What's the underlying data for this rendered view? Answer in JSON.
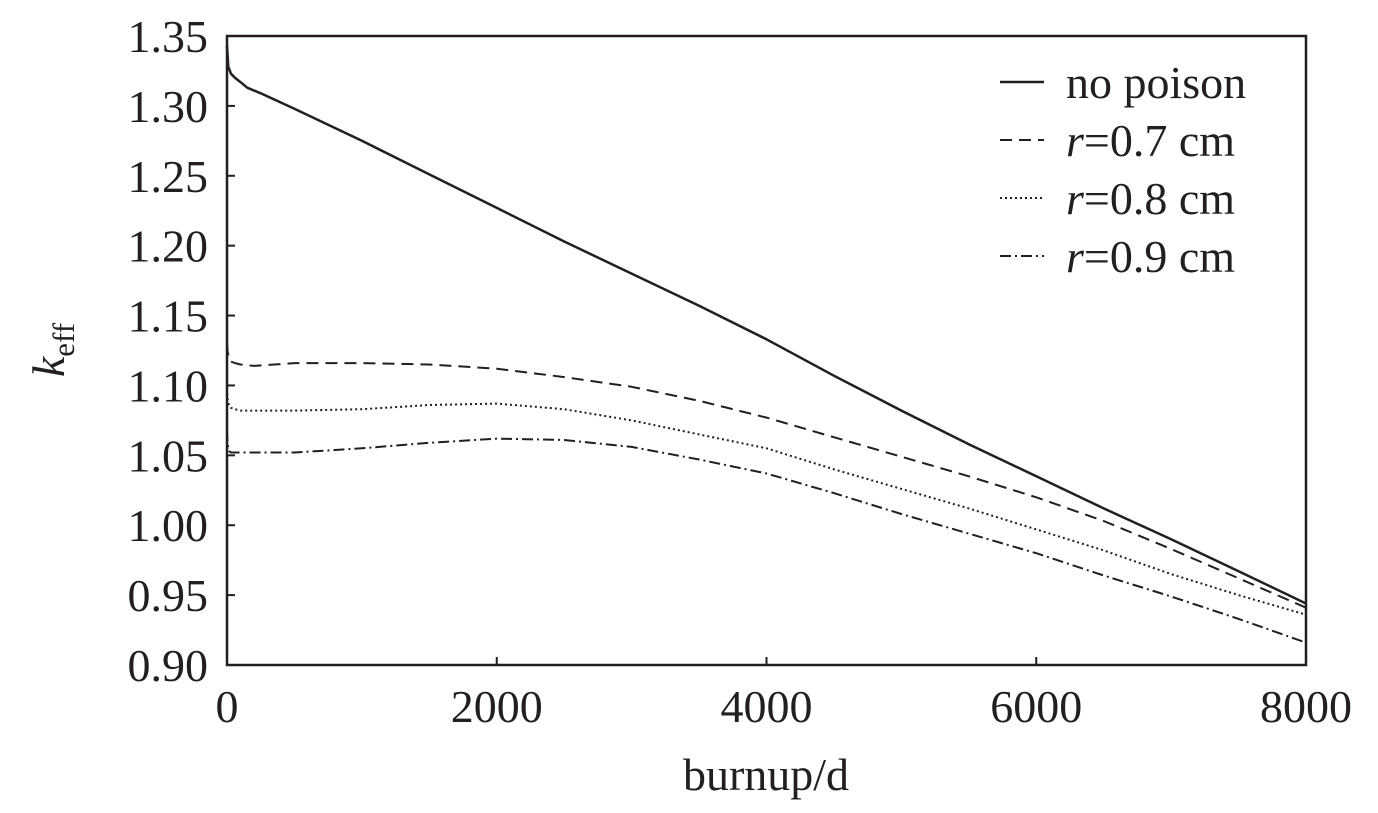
{
  "chart_data": {
    "type": "line",
    "title": "",
    "xlabel": "burnup/d",
    "ylabel": {
      "main": "k",
      "sub": "eff"
    },
    "xlim": [
      0,
      8000
    ],
    "ylim": [
      0.9,
      1.35
    ],
    "xticks": [
      0,
      2000,
      4000,
      6000,
      8000
    ],
    "xtick_labels": [
      "0",
      "2000",
      "4000",
      "6000",
      "8000"
    ],
    "yticks": [
      0.9,
      0.95,
      1.0,
      1.05,
      1.1,
      1.15,
      1.2,
      1.25,
      1.3,
      1.35
    ],
    "ytick_labels": [
      "0.90",
      "0.95",
      "1.00",
      "1.05",
      "1.10",
      "1.15",
      "1.20",
      "1.25",
      "1.30",
      "1.35"
    ],
    "grid": false,
    "legend_position": "top-right",
    "series": [
      {
        "name": "no poison",
        "legend_prefix": "",
        "legend_suffix": "no poison",
        "style": "solid",
        "x": [
          0,
          10,
          30,
          60,
          100,
          150,
          250,
          500,
          1000,
          1500,
          2000,
          2500,
          3000,
          3500,
          4000,
          4500,
          5000,
          5500,
          6000,
          6500,
          7000,
          7500,
          8000
        ],
        "y": [
          1.343,
          1.328,
          1.323,
          1.32,
          1.317,
          1.313,
          1.309,
          1.298,
          1.275,
          1.251,
          1.227,
          1.203,
          1.18,
          1.157,
          1.133,
          1.107,
          1.082,
          1.058,
          1.035,
          1.012,
          0.99,
          0.967,
          0.944
        ]
      },
      {
        "name": "r=0.7 cm",
        "legend_prefix": "r",
        "legend_suffix": "=0.7 cm",
        "style": "dashed",
        "x": [
          0,
          5,
          15,
          30,
          60,
          100,
          200,
          500,
          1000,
          1500,
          2000,
          2500,
          3000,
          3500,
          4000,
          4500,
          5000,
          5500,
          6000,
          6500,
          7000,
          7500,
          8000
        ],
        "y": [
          1.13,
          1.124,
          1.119,
          1.117,
          1.116,
          1.115,
          1.114,
          1.116,
          1.116,
          1.115,
          1.112,
          1.106,
          1.099,
          1.089,
          1.077,
          1.063,
          1.049,
          1.035,
          1.02,
          1.003,
          0.983,
          0.962,
          0.941
        ]
      },
      {
        "name": "r=0.8 cm",
        "legend_prefix": "r",
        "legend_suffix": "=0.8 cm",
        "style": "dotted",
        "x": [
          0,
          5,
          15,
          30,
          60,
          100,
          200,
          500,
          1000,
          1500,
          2000,
          2500,
          3000,
          3500,
          4000,
          4500,
          5000,
          5500,
          6000,
          6500,
          7000,
          7500,
          8000
        ],
        "y": [
          1.098,
          1.09,
          1.086,
          1.084,
          1.083,
          1.082,
          1.082,
          1.082,
          1.083,
          1.086,
          1.087,
          1.083,
          1.075,
          1.065,
          1.055,
          1.04,
          1.026,
          1.012,
          0.997,
          0.982,
          0.965,
          0.95,
          0.936
        ]
      },
      {
        "name": "r=0.9 cm",
        "legend_prefix": "r",
        "legend_suffix": "=0.9 cm",
        "style": "dashdot",
        "x": [
          0,
          5,
          15,
          30,
          60,
          100,
          200,
          500,
          1000,
          1500,
          2000,
          2500,
          3000,
          3500,
          4000,
          4500,
          5000,
          5500,
          6000,
          6500,
          7000,
          7500,
          8000
        ],
        "y": [
          1.068,
          1.058,
          1.053,
          1.052,
          1.052,
          1.052,
          1.052,
          1.052,
          1.055,
          1.059,
          1.062,
          1.061,
          1.056,
          1.047,
          1.037,
          1.023,
          1.008,
          0.994,
          0.98,
          0.964,
          0.949,
          0.933,
          0.916
        ]
      }
    ]
  }
}
